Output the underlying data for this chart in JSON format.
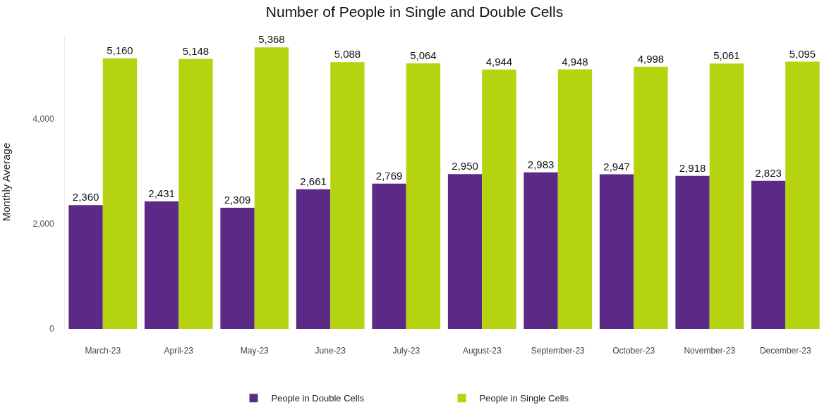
{
  "chart_data": {
    "type": "bar",
    "title": "Number of People in Single and Double Cells",
    "ylabel": "Monthly Average",
    "categories": [
      "March-23",
      "April-23",
      "May-23",
      "June-23",
      "July-23",
      "August-23",
      "September-23",
      "October-23",
      "November-23",
      "December-23"
    ],
    "series": [
      {
        "name": "People in Double Cells",
        "color": "#5b2a86",
        "values": [
          2360,
          2431,
          2309,
          2661,
          2769,
          2950,
          2983,
          2947,
          2918,
          2823
        ],
        "value_labels": [
          "2,360",
          "2,431",
          "2,309",
          "2,661",
          "2,769",
          "2,950",
          "2,983",
          "2,947",
          "2,918",
          "2,823"
        ]
      },
      {
        "name": "People in Single Cells",
        "color": "#b5d30f",
        "values": [
          5160,
          5148,
          5368,
          5088,
          5064,
          4944,
          4948,
          4998,
          5061,
          5095
        ],
        "value_labels": [
          "5,160",
          "5,148",
          "5,368",
          "5,088",
          "5,064",
          "4,944",
          "4,948",
          "4,998",
          "5,061",
          "5,095"
        ]
      }
    ],
    "ylim": [
      0,
      5600
    ],
    "yticks": [
      {
        "value": 0,
        "label": "0"
      },
      {
        "value": 2000,
        "label": "2,000"
      },
      {
        "value": 4000,
        "label": "4,000"
      }
    ],
    "grid": false,
    "legend": "bottom"
  }
}
